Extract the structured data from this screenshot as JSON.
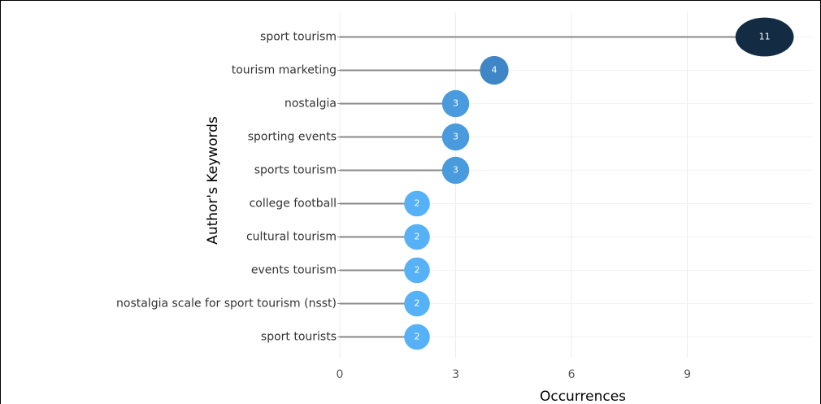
{
  "chart_data": {
    "type": "lollipop",
    "categories": [
      "sport tourism",
      "tourism marketing",
      "nostalgia",
      "sporting events",
      "sports tourism",
      "college football",
      "cultural tourism",
      "events tourism",
      "nostalgia scale for sport tourism (nsst)",
      "sport tourists"
    ],
    "values": [
      11,
      4,
      3,
      3,
      3,
      2,
      2,
      2,
      2,
      2
    ],
    "colors": [
      "#132b43",
      "#3f86c6",
      "#4a9ade",
      "#4a9ade",
      "#4a9ade",
      "#56b1f7",
      "#56b1f7",
      "#56b1f7",
      "#56b1f7",
      "#56b1f7"
    ],
    "xlabel": "Occurrences",
    "ylabel": "Author's Keywords",
    "xlim": [
      0,
      12.25
    ],
    "xticks": [
      0,
      3,
      6,
      9
    ],
    "grid": true
  }
}
